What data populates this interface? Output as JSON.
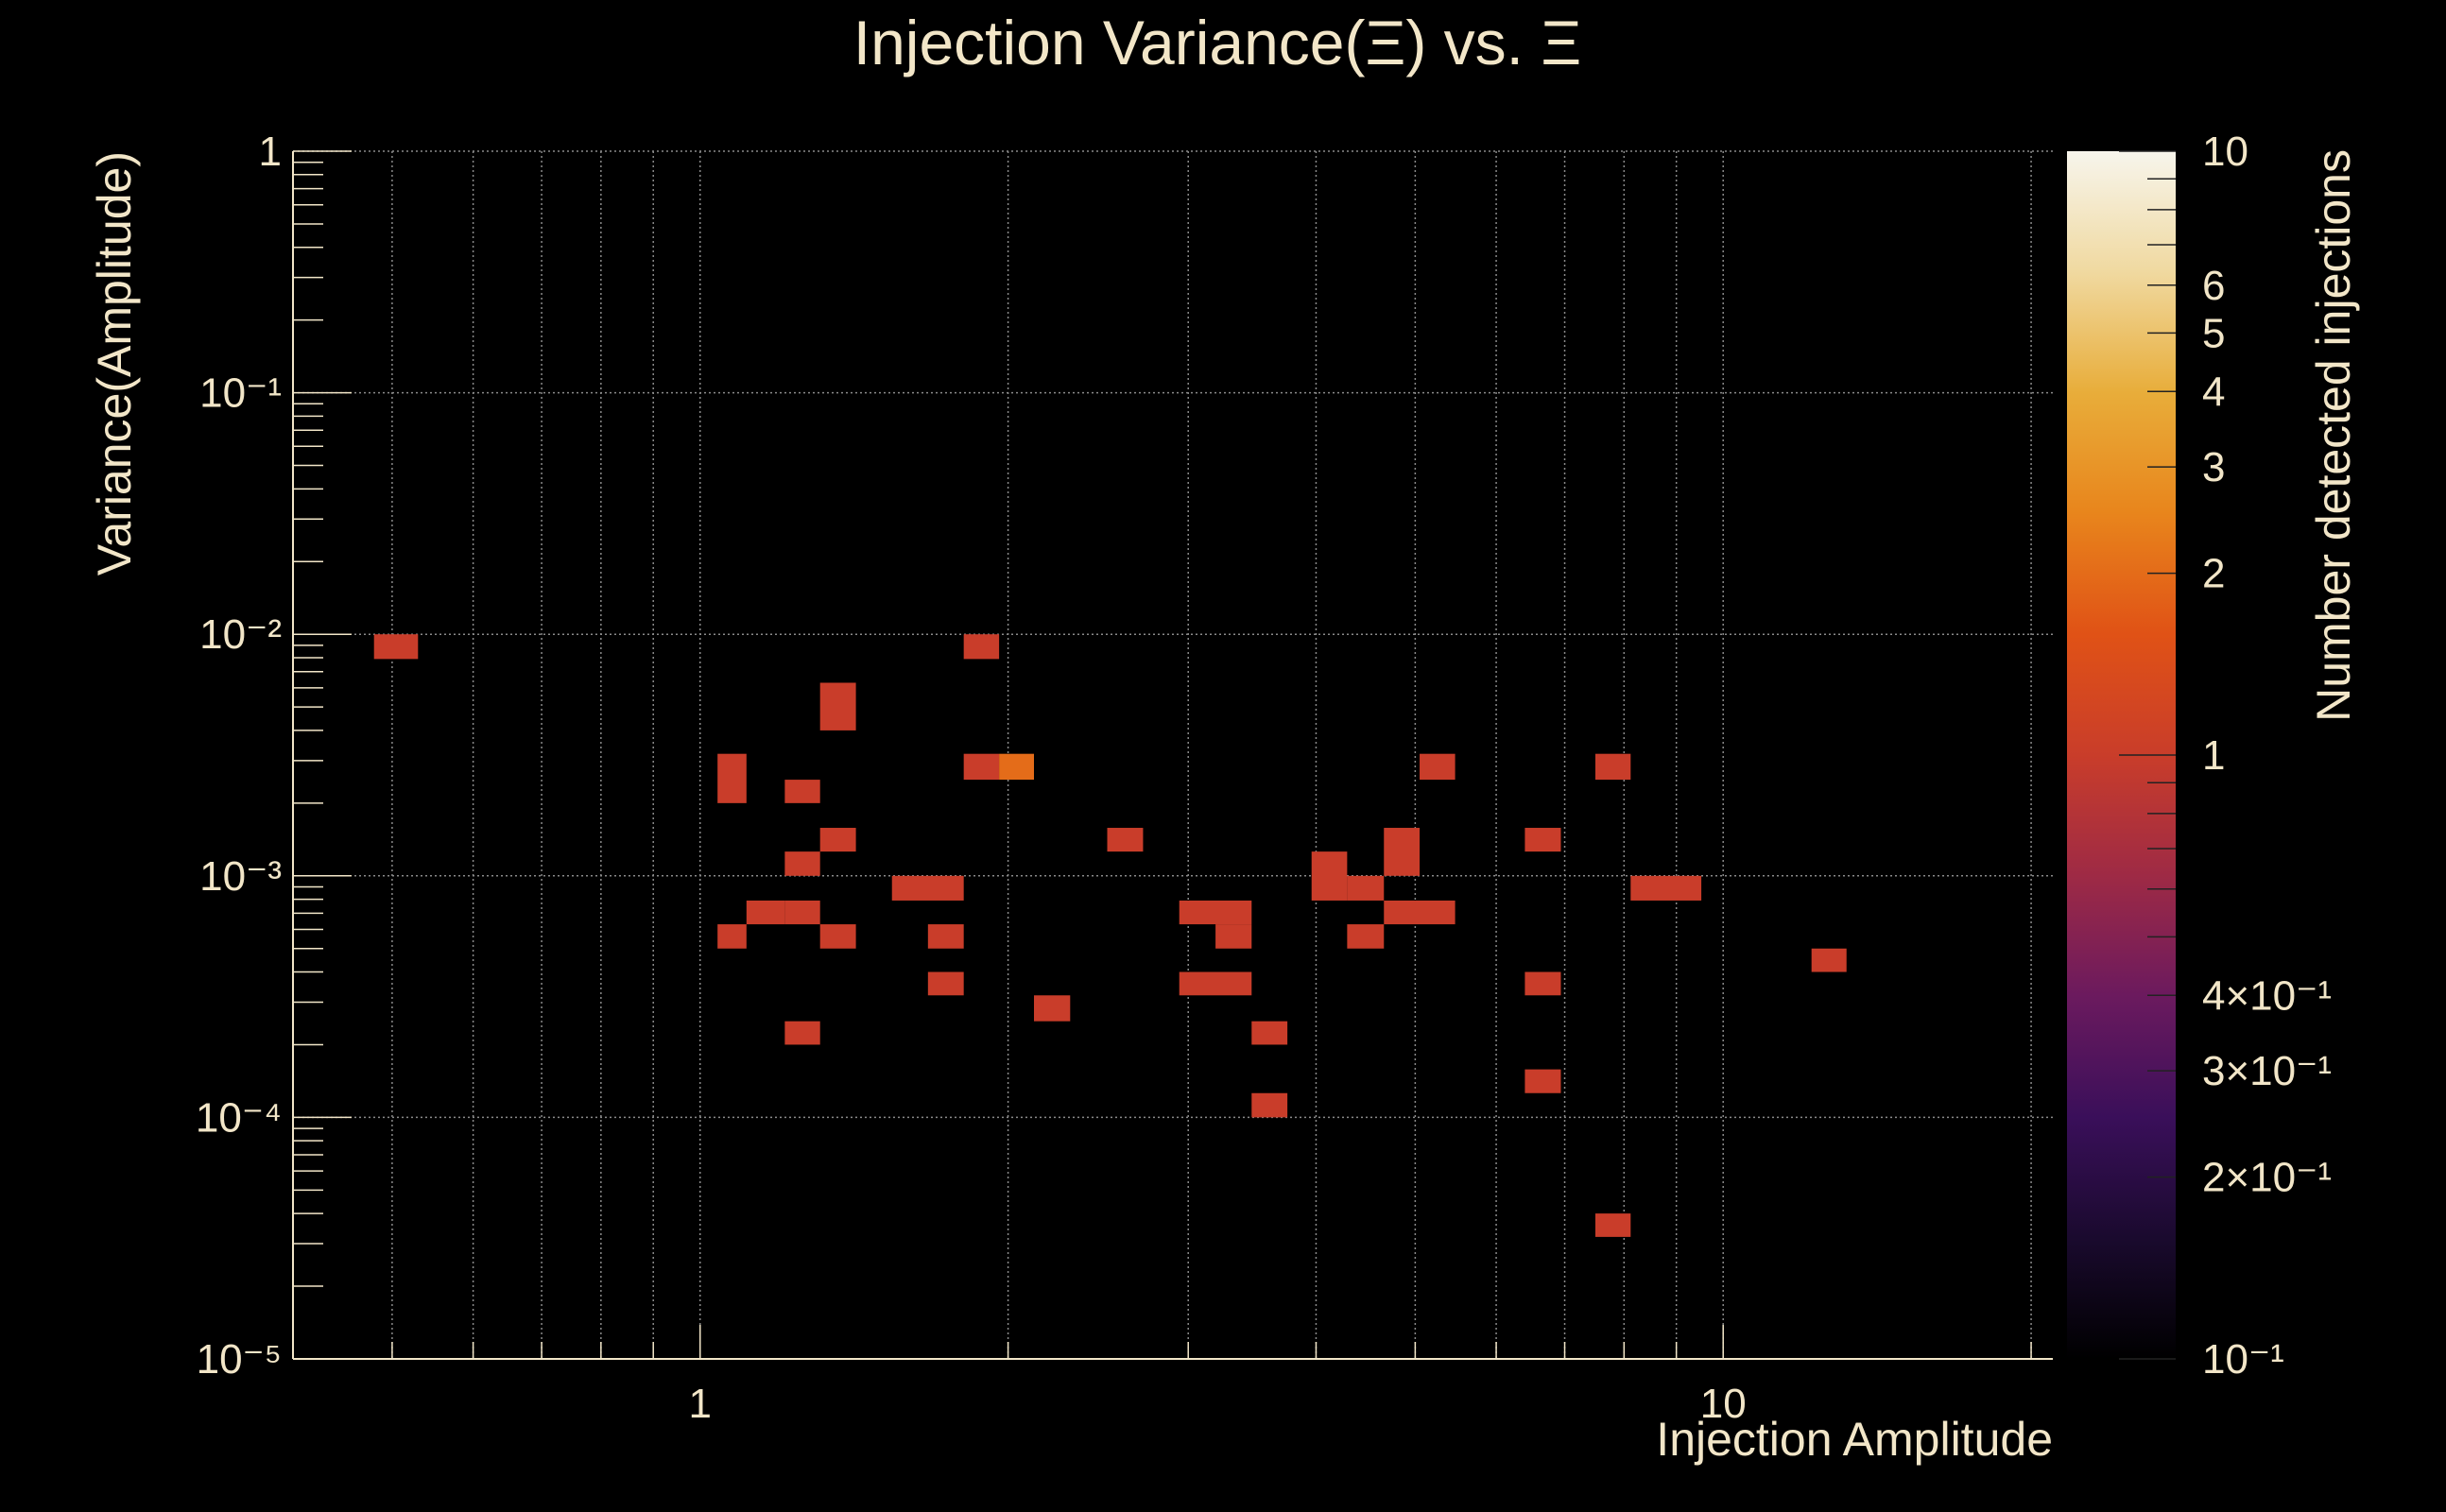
{
  "chart_data": {
    "type": "heatmap",
    "title": "Injection Variance(Ξ) vs. Ξ",
    "xlabel": "Injection Amplitude",
    "ylabel": "Variance(Amplitude)",
    "colorbar_label": "Number detected injections",
    "x_scale": "log",
    "y_scale": "log",
    "xlim": [
      0.4,
      21
    ],
    "ylim": [
      1e-05,
      1
    ],
    "zlim": [
      0.1,
      10
    ],
    "x_ticks": [
      {
        "value": 1,
        "label": "1"
      },
      {
        "value": 10,
        "label": "10"
      }
    ],
    "y_ticks": [
      {
        "value": 1,
        "label": "1"
      },
      {
        "value": 0.1,
        "label": "10⁻¹"
      },
      {
        "value": 0.01,
        "label": "10⁻²"
      },
      {
        "value": 0.001,
        "label": "10⁻³"
      },
      {
        "value": 0.0001,
        "label": "10⁻⁴"
      },
      {
        "value": 1e-05,
        "label": "10⁻⁵"
      }
    ],
    "z_ticks": [
      {
        "value": 10,
        "label": "10"
      },
      {
        "value": 6,
        "label": "6"
      },
      {
        "value": 5,
        "label": "5"
      },
      {
        "value": 4,
        "label": "4"
      },
      {
        "value": 3,
        "label": "3"
      },
      {
        "value": 2,
        "label": "2"
      },
      {
        "value": 1,
        "label": "1"
      },
      {
        "value": 0.4,
        "label": "4×10⁻¹"
      },
      {
        "value": 0.3,
        "label": "3×10⁻¹"
      },
      {
        "value": 0.2,
        "label": "2×10⁻¹"
      },
      {
        "value": 0.1,
        "label": "10⁻¹"
      }
    ],
    "colormap": [
      "#000000",
      "#1a0a2e",
      "#3a0f5a",
      "#6b1a5e",
      "#9e2a45",
      "#c93d2a",
      "#e05216",
      "#e8851c",
      "#e8ad3a",
      "#f0d9a0",
      "#f7f5ec"
    ],
    "cells": [
      {
        "x0": 0.48,
        "x1": 0.53,
        "y0": 0.0079,
        "y1": 0.01,
        "count": 1
      },
      {
        "x0": 1.04,
        "x1": 1.11,
        "y0": 0.002,
        "y1": 0.0032,
        "count": 1
      },
      {
        "x0": 1.04,
        "x1": 1.11,
        "y0": 0.0005,
        "y1": 0.00063,
        "count": 1
      },
      {
        "x0": 1.11,
        "x1": 1.21,
        "y0": 0.00063,
        "y1": 0.00079,
        "count": 1
      },
      {
        "x0": 1.21,
        "x1": 1.31,
        "y0": 0.00063,
        "y1": 0.00079,
        "count": 1
      },
      {
        "x0": 1.21,
        "x1": 1.31,
        "y0": 0.002,
        "y1": 0.0025,
        "count": 1
      },
      {
        "x0": 1.21,
        "x1": 1.31,
        "y0": 0.001,
        "y1": 0.00126,
        "count": 1
      },
      {
        "x0": 1.21,
        "x1": 1.31,
        "y0": 0.0002,
        "y1": 0.00025,
        "count": 1
      },
      {
        "x0": 1.31,
        "x1": 1.42,
        "y0": 0.004,
        "y1": 0.0063,
        "count": 1
      },
      {
        "x0": 1.31,
        "x1": 1.42,
        "y0": 0.00126,
        "y1": 0.00158,
        "count": 1
      },
      {
        "x0": 1.31,
        "x1": 1.42,
        "y0": 0.0005,
        "y1": 0.00063,
        "count": 1
      },
      {
        "x0": 1.54,
        "x1": 1.81,
        "y0": 0.00079,
        "y1": 0.001,
        "count": 1
      },
      {
        "x0": 1.67,
        "x1": 1.81,
        "y0": 0.0005,
        "y1": 0.00063,
        "count": 1
      },
      {
        "x0": 1.67,
        "x1": 1.81,
        "y0": 0.00032,
        "y1": 0.0004,
        "count": 1
      },
      {
        "x0": 1.81,
        "x1": 1.96,
        "y0": 0.0079,
        "y1": 0.01,
        "count": 1
      },
      {
        "x0": 1.81,
        "x1": 1.96,
        "y0": 0.0025,
        "y1": 0.0032,
        "count": 1
      },
      {
        "x0": 1.96,
        "x1": 2.12,
        "y0": 0.0025,
        "y1": 0.0032,
        "count": 2
      },
      {
        "x0": 2.12,
        "x1": 2.3,
        "y0": 0.00025,
        "y1": 0.00032,
        "count": 1
      },
      {
        "x0": 2.5,
        "x1": 2.71,
        "y0": 0.00126,
        "y1": 0.00158,
        "count": 1
      },
      {
        "x0": 2.94,
        "x1": 3.46,
        "y0": 0.00063,
        "y1": 0.00079,
        "count": 1
      },
      {
        "x0": 3.19,
        "x1": 3.46,
        "y0": 0.0005,
        "y1": 0.00063,
        "count": 1
      },
      {
        "x0": 2.94,
        "x1": 3.46,
        "y0": 0.00032,
        "y1": 0.0004,
        "count": 1
      },
      {
        "x0": 3.46,
        "x1": 3.75,
        "y0": 0.0002,
        "y1": 0.00025,
        "count": 1
      },
      {
        "x0": 3.46,
        "x1": 3.75,
        "y0": 0.0001,
        "y1": 0.000126,
        "count": 1
      },
      {
        "x0": 3.96,
        "x1": 4.29,
        "y0": 0.00079,
        "y1": 0.00126,
        "count": 1
      },
      {
        "x0": 4.29,
        "x1": 4.66,
        "y0": 0.00079,
        "y1": 0.001,
        "count": 1
      },
      {
        "x0": 4.29,
        "x1": 4.66,
        "y0": 0.0005,
        "y1": 0.00063,
        "count": 1
      },
      {
        "x0": 4.66,
        "x1": 5.05,
        "y0": 0.001,
        "y1": 0.00158,
        "count": 1
      },
      {
        "x0": 4.66,
        "x1": 5.47,
        "y0": 0.00063,
        "y1": 0.00079,
        "count": 1
      },
      {
        "x0": 5.05,
        "x1": 5.47,
        "y0": 0.0025,
        "y1": 0.0032,
        "count": 1
      },
      {
        "x0": 6.4,
        "x1": 6.94,
        "y0": 0.00126,
        "y1": 0.00158,
        "count": 1
      },
      {
        "x0": 6.4,
        "x1": 6.94,
        "y0": 0.00032,
        "y1": 0.0004,
        "count": 1
      },
      {
        "x0": 6.4,
        "x1": 6.94,
        "y0": 0.000126,
        "y1": 0.000158,
        "count": 1
      },
      {
        "x0": 7.5,
        "x1": 8.12,
        "y0": 0.0025,
        "y1": 0.0032,
        "count": 1
      },
      {
        "x0": 7.5,
        "x1": 8.12,
        "y0": 3.2e-05,
        "y1": 4e-05,
        "count": 1
      },
      {
        "x0": 8.12,
        "x1": 9.52,
        "y0": 0.00079,
        "y1": 0.001,
        "count": 1
      },
      {
        "x0": 12.2,
        "x1": 13.2,
        "y0": 0.0004,
        "y1": 0.0005,
        "count": 1
      }
    ]
  }
}
